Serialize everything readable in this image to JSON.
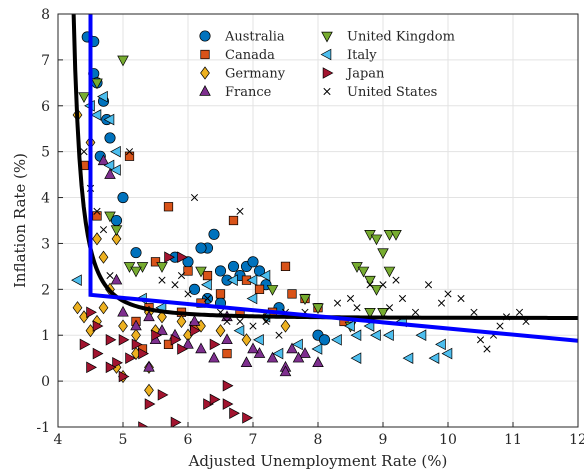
{
  "chart_data": {
    "type": "scatter",
    "title": "",
    "xlabel": "Adjusted Unemployment Rate (%)",
    "ylabel": "Inflation Rate (%)",
    "xlim": [
      4,
      12
    ],
    "ylim": [
      -1,
      8
    ],
    "xticks": [
      4,
      5,
      6,
      7,
      8,
      9,
      10,
      11,
      12
    ],
    "yticks": [
      -1,
      0,
      1,
      2,
      3,
      4,
      5,
      6,
      7,
      8
    ],
    "grid": true,
    "legend_position": "top-center",
    "series": [
      {
        "name": "Australia",
        "marker": "circle",
        "color": "#0072BD",
        "points": [
          [
            4.45,
            7.5
          ],
          [
            4.55,
            7.4
          ],
          [
            4.55,
            6.7
          ],
          [
            4.6,
            6.5
          ],
          [
            4.7,
            6.1
          ],
          [
            4.75,
            5.7
          ],
          [
            4.8,
            5.3
          ],
          [
            4.65,
            4.9
          ],
          [
            5.0,
            4.0
          ],
          [
            4.9,
            3.5
          ],
          [
            5.2,
            2.8
          ],
          [
            5.8,
            2.7
          ],
          [
            6.0,
            2.6
          ],
          [
            6.3,
            2.9
          ],
          [
            6.4,
            3.2
          ],
          [
            6.2,
            2.9
          ],
          [
            6.5,
            2.4
          ],
          [
            6.7,
            2.5
          ],
          [
            6.9,
            2.5
          ],
          [
            7.0,
            2.6
          ],
          [
            7.1,
            2.4
          ],
          [
            6.8,
            2.3
          ],
          [
            6.6,
            2.2
          ],
          [
            7.2,
            2.1
          ],
          [
            6.1,
            2.0
          ],
          [
            6.3,
            1.8
          ],
          [
            6.5,
            1.7
          ],
          [
            7.4,
            1.6
          ],
          [
            8.0,
            1.0
          ],
          [
            8.1,
            0.9
          ]
        ]
      },
      {
        "name": "Canada",
        "marker": "square",
        "color": "#D95319",
        "points": [
          [
            4.4,
            4.7
          ],
          [
            4.6,
            3.6
          ],
          [
            5.1,
            4.9
          ],
          [
            5.7,
            3.8
          ],
          [
            6.7,
            3.5
          ],
          [
            5.5,
            2.6
          ],
          [
            6.0,
            2.4
          ],
          [
            6.3,
            2.3
          ],
          [
            6.9,
            2.2
          ],
          [
            7.1,
            2.0
          ],
          [
            7.5,
            2.5
          ],
          [
            7.6,
            1.9
          ],
          [
            7.8,
            1.8
          ],
          [
            6.5,
            1.9
          ],
          [
            6.2,
            1.7
          ],
          [
            5.4,
            1.6
          ],
          [
            5.9,
            1.5
          ],
          [
            6.8,
            1.5
          ],
          [
            7.3,
            1.5
          ],
          [
            8.0,
            1.6
          ],
          [
            8.4,
            1.3
          ],
          [
            5.2,
            1.3
          ],
          [
            6.1,
            1.2
          ],
          [
            5.3,
            0.7
          ],
          [
            5.7,
            0.8
          ],
          [
            6.6,
            0.6
          ]
        ]
      },
      {
        "name": "Germany",
        "marker": "diamond",
        "color": "#EDB120",
        "points": [
          [
            4.3,
            5.8
          ],
          [
            4.5,
            5.2
          ],
          [
            4.6,
            3.1
          ],
          [
            4.7,
            2.7
          ],
          [
            4.8,
            2.0
          ],
          [
            4.3,
            1.6
          ],
          [
            4.4,
            1.4
          ],
          [
            4.5,
            1.1
          ],
          [
            4.6,
            1.3
          ],
          [
            4.7,
            1.6
          ],
          [
            4.9,
            3.1
          ],
          [
            5.0,
            1.2
          ],
          [
            5.2,
            1.0
          ],
          [
            5.4,
            1.5
          ],
          [
            5.5,
            1.1
          ],
          [
            5.6,
            1.4
          ],
          [
            5.9,
            1.3
          ],
          [
            6.0,
            1.0
          ],
          [
            6.2,
            1.2
          ],
          [
            6.5,
            1.1
          ],
          [
            6.9,
            0.9
          ],
          [
            7.2,
            1.4
          ],
          [
            7.5,
            1.2
          ],
          [
            4.9,
            0.3
          ],
          [
            5.0,
            0.1
          ],
          [
            5.4,
            -0.2
          ],
          [
            5.4,
            0.3
          ],
          [
            5.2,
            0.6
          ]
        ]
      },
      {
        "name": "France",
        "marker": "triangle-up",
        "color": "#7E2F8E",
        "points": [
          [
            4.7,
            4.8
          ],
          [
            4.8,
            4.5
          ],
          [
            4.9,
            2.2
          ],
          [
            5.0,
            1.5
          ],
          [
            5.2,
            1.2
          ],
          [
            5.4,
            1.4
          ],
          [
            5.5,
            0.9
          ],
          [
            5.6,
            1.1
          ],
          [
            5.8,
            1.0
          ],
          [
            6.0,
            0.8
          ],
          [
            6.2,
            0.7
          ],
          [
            6.4,
            0.5
          ],
          [
            6.6,
            0.9
          ],
          [
            6.9,
            0.4
          ],
          [
            7.1,
            0.6
          ],
          [
            7.3,
            0.5
          ],
          [
            7.5,
            0.3
          ],
          [
            7.6,
            0.7
          ],
          [
            7.8,
            0.6
          ],
          [
            8.0,
            0.4
          ],
          [
            6.1,
            1.3
          ],
          [
            6.6,
            1.4
          ],
          [
            7.0,
            0.7
          ],
          [
            7.5,
            0.2
          ],
          [
            7.7,
            0.5
          ],
          [
            5.4,
            0.3
          ]
        ]
      },
      {
        "name": "United Kingdom",
        "marker": "triangle-down",
        "color": "#77AC30",
        "points": [
          [
            4.4,
            6.2
          ],
          [
            4.6,
            6.5
          ],
          [
            5.0,
            7.0
          ],
          [
            4.8,
            3.6
          ],
          [
            4.9,
            3.3
          ],
          [
            5.1,
            2.5
          ],
          [
            5.3,
            2.5
          ],
          [
            5.2,
            2.4
          ],
          [
            5.6,
            2.5
          ],
          [
            6.2,
            2.4
          ],
          [
            7.3,
            2.0
          ],
          [
            7.8,
            1.8
          ],
          [
            8.0,
            1.6
          ],
          [
            8.6,
            2.5
          ],
          [
            8.8,
            3.2
          ],
          [
            8.9,
            3.1
          ],
          [
            9.0,
            2.8
          ],
          [
            9.1,
            3.2
          ],
          [
            9.2,
            3.2
          ],
          [
            8.7,
            2.4
          ],
          [
            8.8,
            2.2
          ],
          [
            9.1,
            2.4
          ],
          [
            8.9,
            2.0
          ],
          [
            8.8,
            1.5
          ],
          [
            9.0,
            1.5
          ],
          [
            8.5,
            1.2
          ]
        ]
      },
      {
        "name": "Italy",
        "marker": "triangle-left",
        "color": "#4DBEEE",
        "points": [
          [
            4.3,
            2.2
          ],
          [
            4.5,
            6.0
          ],
          [
            4.7,
            6.2
          ],
          [
            4.6,
            5.8
          ],
          [
            4.8,
            5.7
          ],
          [
            4.9,
            5.0
          ],
          [
            4.8,
            4.7
          ],
          [
            4.9,
            4.6
          ],
          [
            5.3,
            1.8
          ],
          [
            5.6,
            1.6
          ],
          [
            6.3,
            2.1
          ],
          [
            6.7,
            2.2
          ],
          [
            7.0,
            2.2
          ],
          [
            7.2,
            2.3
          ],
          [
            7.0,
            1.8
          ],
          [
            7.2,
            1.4
          ],
          [
            6.8,
            1.1
          ],
          [
            7.1,
            0.9
          ],
          [
            7.4,
            0.6
          ],
          [
            7.7,
            0.8
          ],
          [
            8.0,
            0.7
          ],
          [
            8.3,
            0.9
          ],
          [
            8.5,
            1.2
          ],
          [
            8.6,
            1.0
          ],
          [
            8.8,
            1.2
          ],
          [
            8.9,
            1.0
          ],
          [
            9.1,
            1.0
          ],
          [
            9.3,
            1.3
          ],
          [
            9.6,
            1.0
          ],
          [
            9.8,
            0.5
          ],
          [
            9.9,
            0.8
          ],
          [
            10.0,
            0.6
          ],
          [
            8.6,
            0.5
          ],
          [
            9.4,
            0.5
          ]
        ]
      },
      {
        "name": "Japan",
        "marker": "triangle-right",
        "color": "#A2142F",
        "points": [
          [
            4.5,
            1.5
          ],
          [
            4.6,
            1.2
          ],
          [
            4.4,
            0.8
          ],
          [
            4.5,
            0.3
          ],
          [
            4.6,
            0.6
          ],
          [
            4.8,
            0.9
          ],
          [
            4.9,
            0.4
          ],
          [
            5.0,
            0.1
          ],
          [
            5.1,
            0.5
          ],
          [
            5.3,
            0.6
          ],
          [
            4.8,
            0.3
          ],
          [
            5.0,
            0.9
          ],
          [
            5.2,
            0.8
          ],
          [
            5.5,
            1.0
          ],
          [
            5.8,
            0.9
          ],
          [
            5.9,
            0.7
          ],
          [
            6.1,
            1.1
          ],
          [
            6.4,
            0.8
          ],
          [
            5.3,
            -1.0
          ],
          [
            5.8,
            -0.9
          ],
          [
            5.4,
            -0.5
          ],
          [
            5.6,
            -0.3
          ],
          [
            6.3,
            -0.5
          ],
          [
            6.4,
            -0.4
          ],
          [
            6.6,
            -0.5
          ],
          [
            6.7,
            -0.7
          ],
          [
            6.9,
            -0.8
          ],
          [
            6.6,
            -0.1
          ],
          [
            5.7,
            2.7
          ],
          [
            5.9,
            2.7
          ]
        ]
      },
      {
        "name": "United States",
        "marker": "x",
        "color": "#000000",
        "points": [
          [
            4.4,
            5.0
          ],
          [
            4.5,
            4.2
          ],
          [
            4.6,
            3.7
          ],
          [
            4.7,
            3.3
          ],
          [
            4.8,
            2.3
          ],
          [
            5.1,
            5.0
          ],
          [
            6.1,
            4.0
          ],
          [
            6.8,
            3.7
          ],
          [
            5.6,
            2.2
          ],
          [
            5.8,
            2.1
          ],
          [
            5.9,
            2.3
          ],
          [
            6.0,
            1.9
          ],
          [
            6.3,
            1.8
          ],
          [
            6.5,
            1.5
          ],
          [
            6.6,
            1.3
          ],
          [
            6.8,
            1.3
          ],
          [
            7.0,
            1.2
          ],
          [
            7.2,
            1.3
          ],
          [
            7.4,
            1.0
          ],
          [
            7.5,
            1.5
          ],
          [
            7.8,
            1.5
          ],
          [
            8.3,
            1.7
          ],
          [
            8.5,
            1.8
          ],
          [
            8.6,
            1.6
          ],
          [
            8.8,
            2.1
          ],
          [
            9.0,
            2.1
          ],
          [
            9.1,
            1.6
          ],
          [
            9.2,
            2.2
          ],
          [
            9.3,
            1.8
          ],
          [
            9.5,
            1.5
          ],
          [
            9.7,
            2.1
          ],
          [
            9.9,
            1.7
          ],
          [
            10.0,
            1.9
          ],
          [
            10.2,
            1.8
          ],
          [
            10.4,
            1.5
          ],
          [
            10.5,
            0.9
          ],
          [
            10.6,
            0.7
          ],
          [
            10.7,
            1.0
          ],
          [
            10.8,
            1.2
          ],
          [
            10.9,
            1.4
          ],
          [
            11.1,
            1.5
          ],
          [
            11.2,
            1.3
          ]
        ]
      }
    ],
    "fit_lines": [
      {
        "kind": "curve",
        "color": "#000000",
        "width": 4,
        "asymptote_x": 4.0,
        "floor": 1.37,
        "coef": 0.38,
        "x_range": [
          4.2,
          12
        ]
      },
      {
        "kind": "polyline",
        "color": "#0000FF",
        "width": 4,
        "points": [
          [
            4.5,
            8.0
          ],
          [
            4.5,
            1.88
          ],
          [
            12.0,
            0.88
          ]
        ]
      }
    ]
  }
}
